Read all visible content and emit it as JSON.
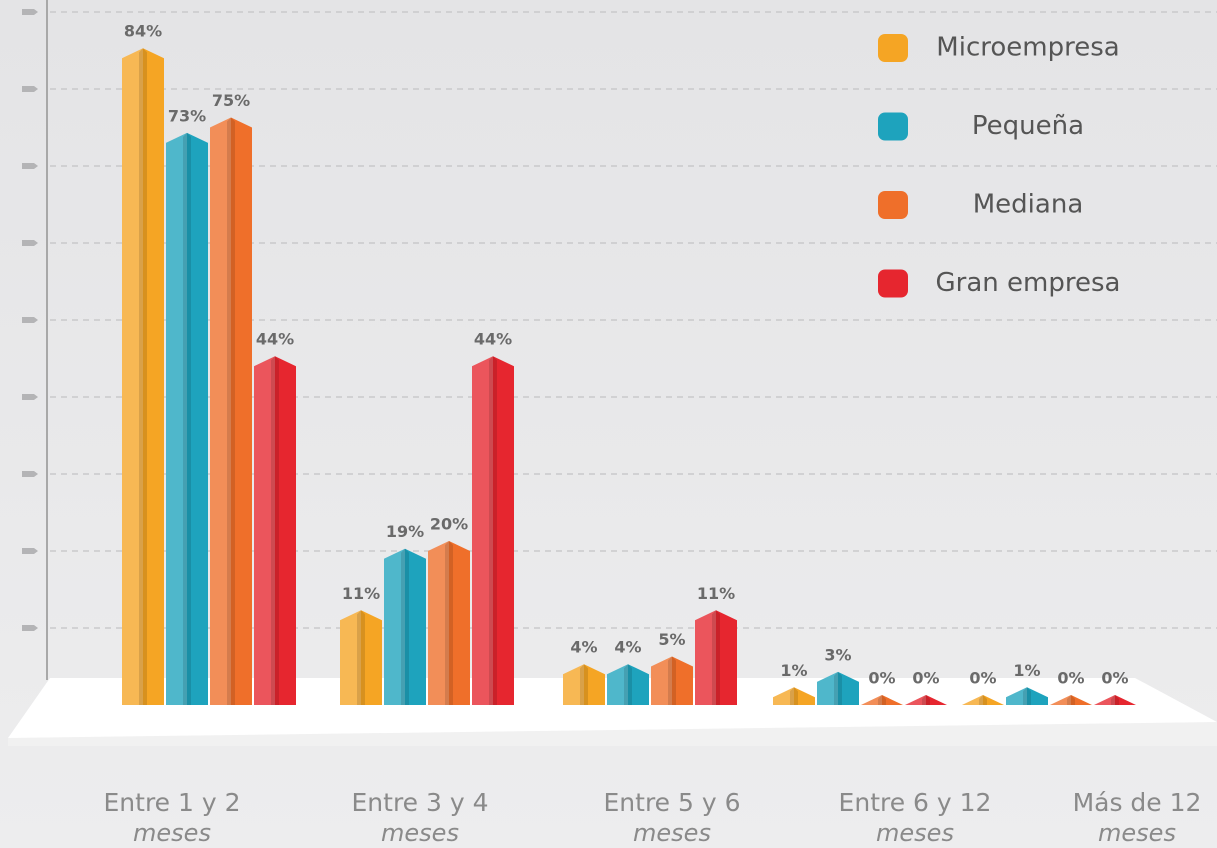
{
  "chart_data": {
    "type": "bar",
    "categories": [
      "Entre 1 y 2",
      "Entre 3 y 4",
      "Entre 5 y 6",
      "Entre 6 y 12",
      "Más de 12"
    ],
    "category_sublabels": [
      "meses",
      "meses",
      "meses",
      "meses",
      "meses"
    ],
    "series": [
      {
        "name": "Microempresa",
        "color": "#f5a524",
        "values": [
          84,
          11,
          4,
          1,
          0
        ],
        "value_labels": [
          "84%",
          "11%",
          "4%",
          "1%",
          "0%"
        ]
      },
      {
        "name": "Pequeña",
        "color": "#1ea3bd",
        "values": [
          73,
          19,
          4,
          3,
          1
        ],
        "value_labels": [
          "73%",
          "19%",
          "4%",
          "3%",
          "1%"
        ]
      },
      {
        "name": "Mediana",
        "color": "#ef6f2a",
        "values": [
          75,
          20,
          5,
          0,
          0
        ],
        "value_labels": [
          "75%",
          "20%",
          "5%",
          "0%",
          "0%"
        ]
      },
      {
        "name": "Gran empresa",
        "color": "#e6262f",
        "values": [
          44,
          44,
          11,
          0,
          0
        ],
        "value_labels": [
          "44%",
          "44%",
          "11%",
          "0%",
          "0%"
        ]
      }
    ],
    "ylim": [
      0,
      90
    ],
    "yticks": [
      10,
      20,
      30,
      40,
      50,
      60,
      70,
      80,
      90
    ],
    "grid": true
  }
}
